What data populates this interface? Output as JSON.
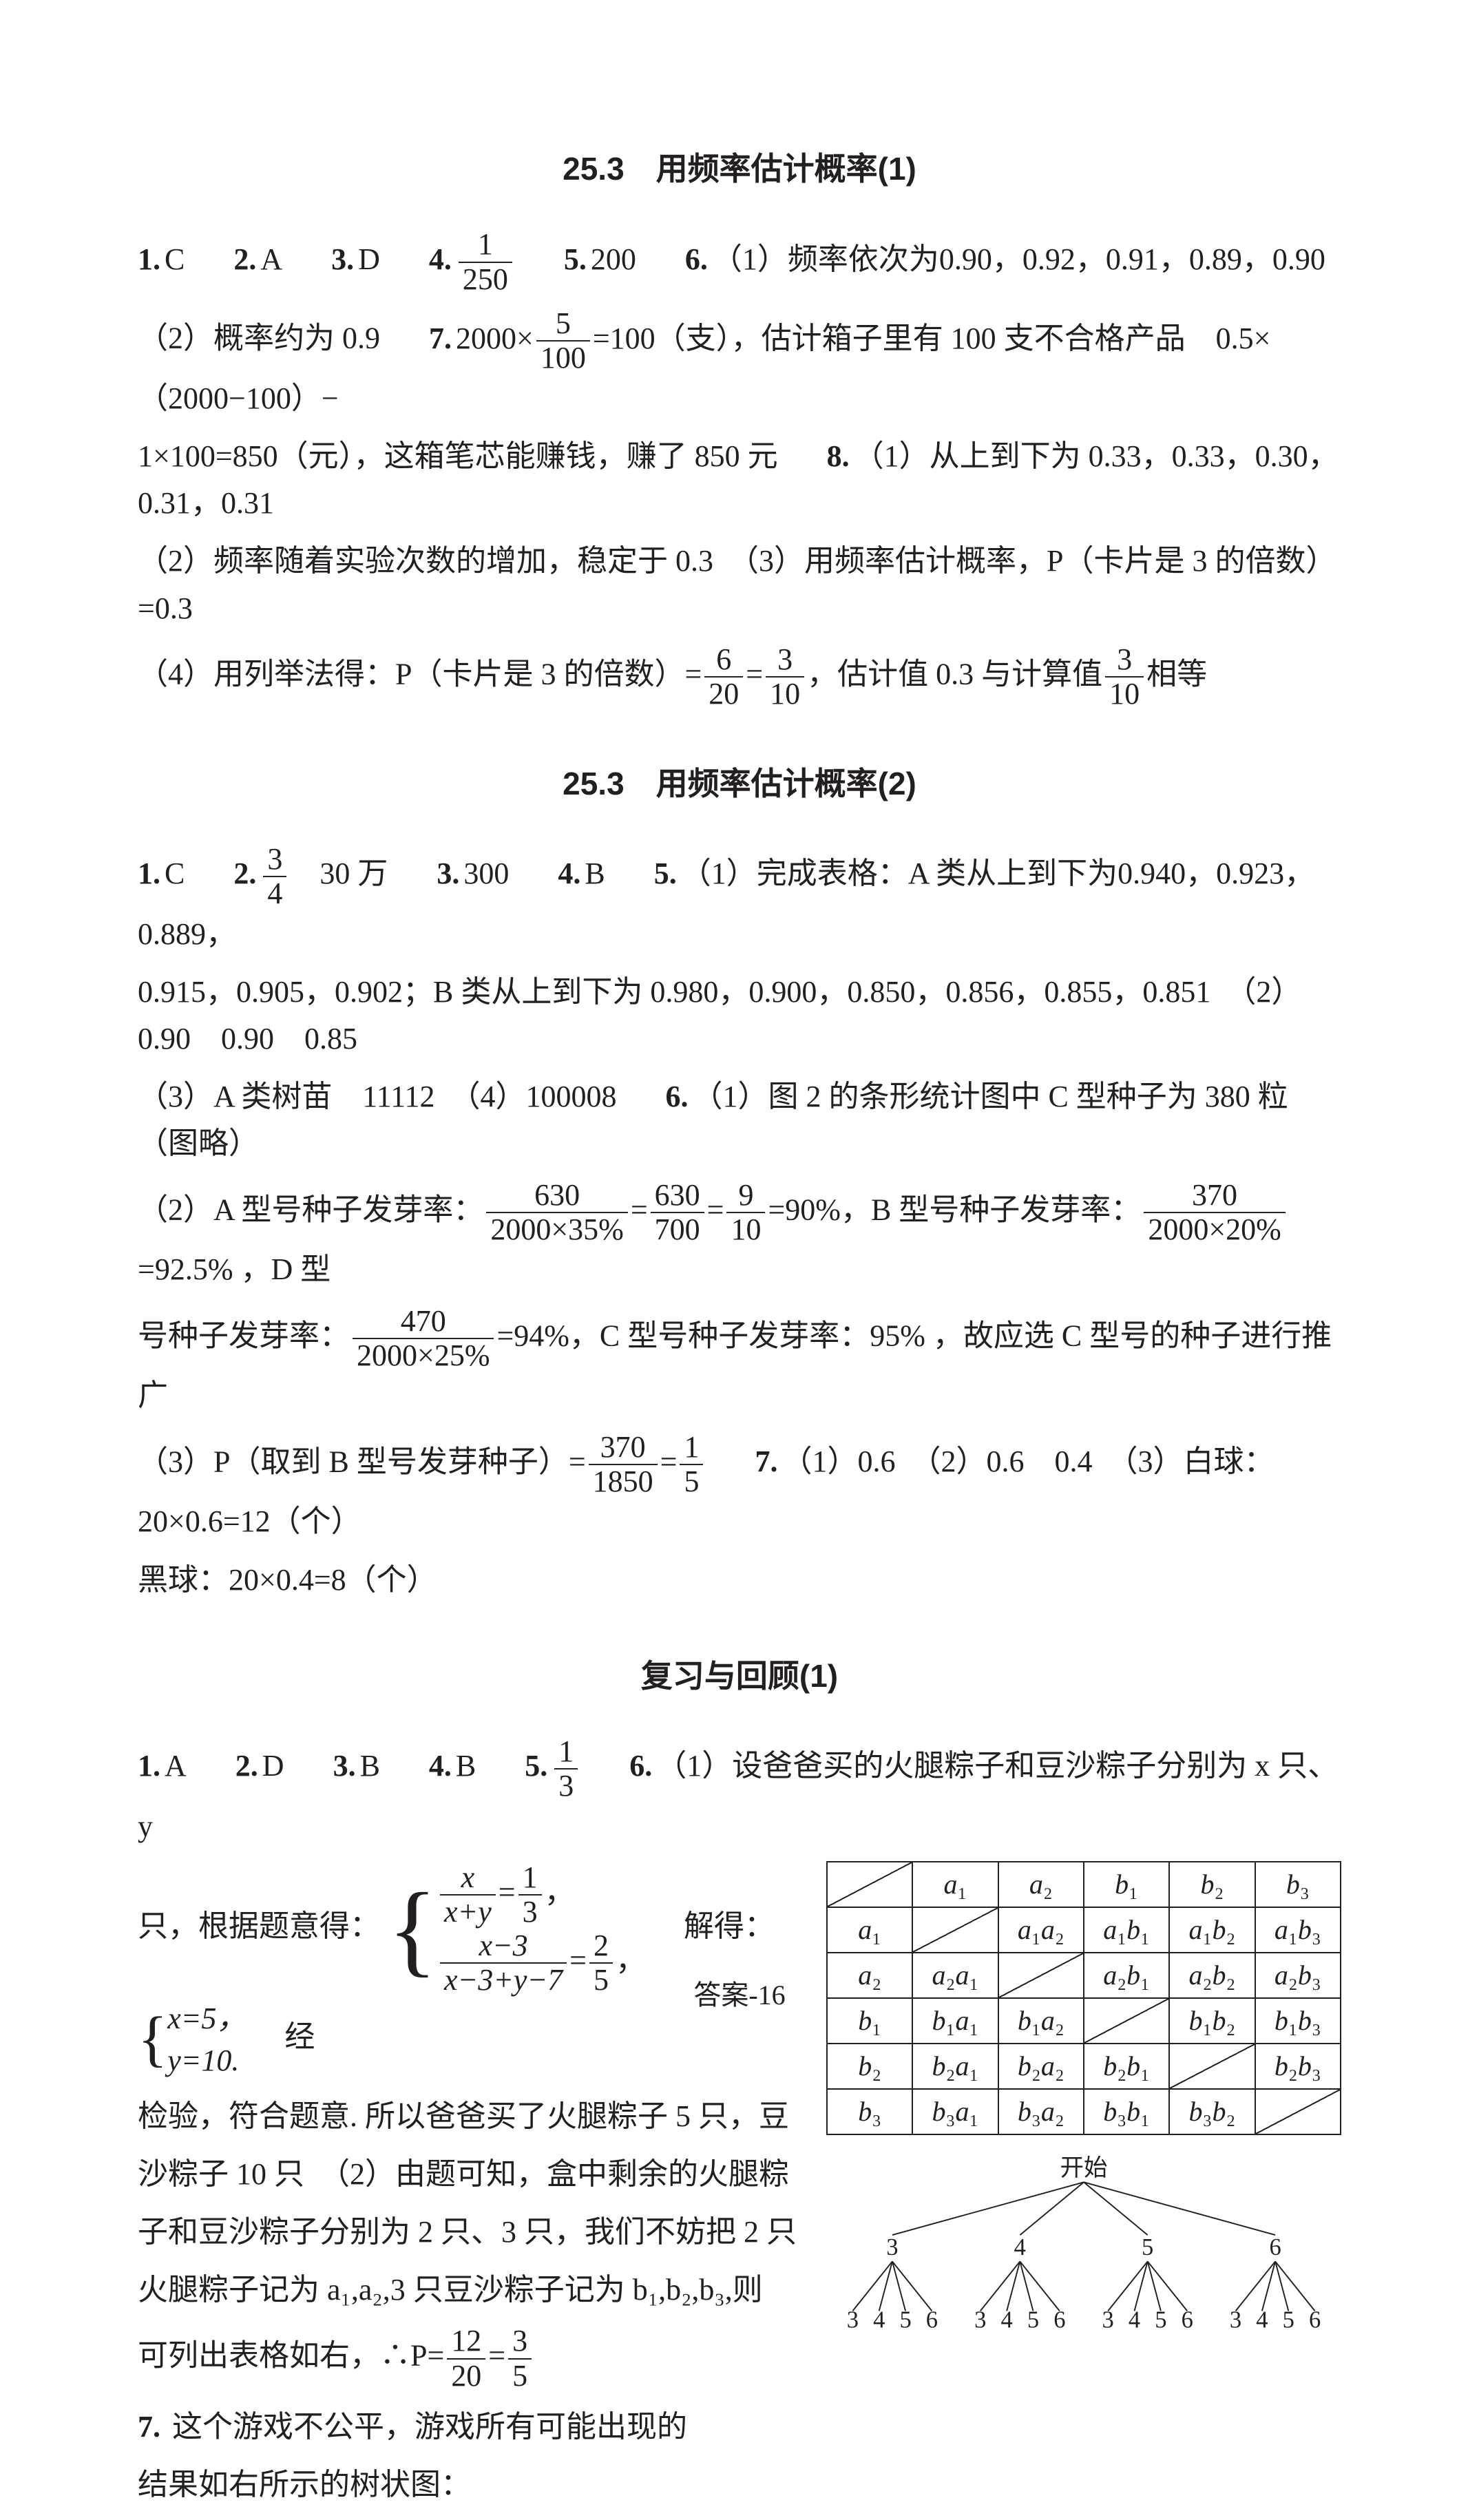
{
  "colors": {
    "text": "#231f20",
    "bg": "#ffffff",
    "border": "#231f20"
  },
  "font": {
    "body_family": "SimSun",
    "heading_family": "SimHei",
    "body_size_pt": 33,
    "heading_size_pt": 35
  },
  "s1": {
    "title": "25.3　用频率估计概率(1)",
    "q1": "C",
    "q2": "A",
    "q3": "D",
    "q4_num": "1",
    "q4_den": "250",
    "q5": "200",
    "q6": "（1）频率依次为0.90，0.92，0.91，0.89，0.90",
    "l2a": "（2）概率约为 0.9",
    "q7a": "2000×",
    "q7b_num": "5",
    "q7b_den": "100",
    "q7c": "=100（支），估计箱子里有 100 支不合格产品　0.5×（2000−100）−",
    "l3": "1×100=850（元），这箱笔芯能赚钱，赚了 850 元",
    "q8a": "（1）从上到下为 0.33，0.33，0.30，0.31，0.31",
    "l4": "（2）频率随着实验次数的增加，稳定于 0.3　（3）用频率估计概率，P（卡片是 3 的倍数）=0.3",
    "l5a": "（4）用列举法得：P（卡片是 3 的倍数）=",
    "l5f1n": "6",
    "l5f1d": "20",
    "l5eq": "=",
    "l5f2n": "3",
    "l5f2d": "10",
    "l5b": "，估计值 0.3 与计算值",
    "l5f3n": "3",
    "l5f3d": "10",
    "l5c": "相等"
  },
  "s2": {
    "title": "25.3　用频率估计概率(2)",
    "q1": "C",
    "q2f_n": "3",
    "q2f_d": "4",
    "q2b": "　30 万",
    "q3": "300",
    "q4": "B",
    "q5a": "（1）完成表格：A 类从上到下为0.940，0.923，0.889，",
    "l2": "0.915，0.905，0.902；B 类从上到下为 0.980，0.900，0.850，0.856，0.855，0.851　（2）0.90　0.90　0.85",
    "l3": "（3）A 类树苗　11112　（4）100008",
    "q6a": "（1）图 2 的条形统计图中 C 型种子为 380 粒（图略）",
    "l4a": "（2）A 型号种子发芽率：",
    "l4f1n": "630",
    "l4f1d": "2000×35%",
    "l4eq1": "=",
    "l4f2n": "630",
    "l4f2d": "700",
    "l4eq2": "=",
    "l4f3n": "9",
    "l4f3d": "10",
    "l4b": "=90%，B 型号种子发芽率：",
    "l4f4n": "370",
    "l4f4d": "2000×20%",
    "l4c": "=92.5% ，D 型",
    "l5a": "号种子发芽率：",
    "l5f1n": "470",
    "l5f1d": "2000×25%",
    "l5b": "=94%，C 型号种子发芽率：95% ，故应选 C 型号的种子进行推广",
    "l6a": "（3）P（取到 B 型号发芽种子）=",
    "l6f1n": "370",
    "l6f1d": "1850",
    "l6eq": "=",
    "l6f2n": "1",
    "l6f2d": "5",
    "q7": "（1）0.6　（2）0.6　0.4　（3）白球：20×0.6=12（个）",
    "l7": "黑球：20×0.4=8（个）"
  },
  "s3": {
    "title": "复习与回顾(1)",
    "q1": "A",
    "q2": "D",
    "q3": "B",
    "q4": "B",
    "q5n": "1",
    "q5d": "3",
    "q6": "（1）设爸爸买的火腿粽子和豆沙粽子分别为 x 只、y",
    "l2a": "只，根据题意得：",
    "sys1_r1a": "x",
    "sys1_r1b": "x+y",
    "sys1_r1c": "1",
    "sys1_r1d": "3",
    "sys1_r2a": "x−3",
    "sys1_r2b": "x−3+y−7",
    "sys1_r2c": "2",
    "sys1_r2d": "5",
    "l2b": "　解得：",
    "sys2_r1": "x=5，",
    "sys2_r2": "y=10.",
    "l2c": "　经",
    "l3": "检验，符合题意. 所以爸爸买了火腿粽子 5 只，豆",
    "l4": "沙粽子 10 只　（2）由题可知，盒中剩余的火腿粽",
    "l5": "子和豆沙粽子分别为 2 只、3 只，我们不妨把 2 只",
    "l6": "火腿粽子记为 a₁,a₂,3 只豆沙粽子记为 b₁,b₂,b₃,则",
    "l7a": "可列出表格如右，∴P=",
    "l7f1n": "12",
    "l7f1d": "20",
    "l7eq": "=",
    "l7f2n": "3",
    "l7f2d": "5",
    "q7text": " 这个游戏不公平，游戏所有可能出现的",
    "l8": "结果如右所示的树状图：",
    "table": {
      "headers": [
        "",
        "a₁",
        "a₂",
        "b₁",
        "b₂",
        "b₃"
      ],
      "rows": [
        [
          "a₁",
          "",
          "a₁a₂",
          "a₁b₁",
          "a₁b₂",
          "a₁b₃"
        ],
        [
          "a₂",
          "a₂a₁",
          "",
          "a₂b₁",
          "a₂b₂",
          "a₂b₃"
        ],
        [
          "b₁",
          "b₁a₁",
          "b₁a₂",
          "",
          "b₁b₂",
          "b₁b₃"
        ],
        [
          "b₂",
          "b₂a₁",
          "b₂a₂",
          "b₂b₁",
          "",
          "b₂b₃"
        ],
        [
          "b₃",
          "b₃a₁",
          "b₃a₂",
          "b₃b₁",
          "b₃b₂",
          ""
        ]
      ],
      "diag_cells": [
        [
          0,
          0
        ],
        [
          1,
          1
        ],
        [
          2,
          2
        ],
        [
          3,
          3
        ],
        [
          4,
          4
        ],
        [
          5,
          5
        ]
      ]
    },
    "tree": {
      "root": "开始",
      "level1": [
        "3",
        "4",
        "5",
        "6"
      ],
      "level2": [
        "3",
        "4",
        "5",
        "6"
      ]
    }
  },
  "footer": "答案-16"
}
